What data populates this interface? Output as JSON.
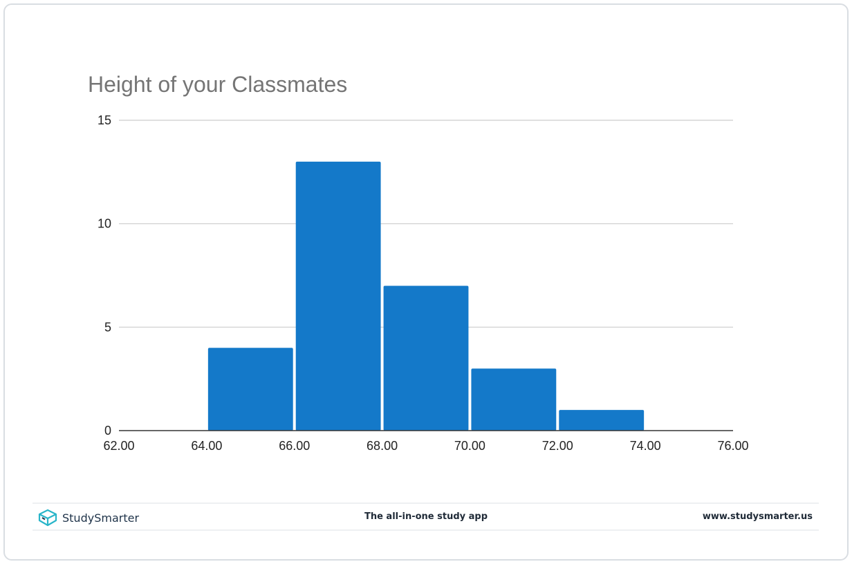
{
  "chart_data": {
    "type": "bar",
    "title": "Height of your Classmates",
    "xlabel": "",
    "ylabel": "",
    "bins": [
      {
        "from": 64,
        "to": 66,
        "value": 4
      },
      {
        "from": 66,
        "to": 68,
        "value": 13
      },
      {
        "from": 68,
        "to": 70,
        "value": 7
      },
      {
        "from": 70,
        "to": 72,
        "value": 3
      },
      {
        "from": 72,
        "to": 74,
        "value": 1
      }
    ],
    "xlim": [
      62,
      76
    ],
    "ylim": [
      0,
      15
    ],
    "x_ticks": [
      "62.00",
      "64.00",
      "66.00",
      "68.00",
      "70.00",
      "72.00",
      "74.00",
      "76.00"
    ],
    "y_ticks": [
      "0",
      "5",
      "10",
      "15"
    ],
    "grid": true,
    "legend": "none",
    "bar_color": "#1479c9"
  },
  "footer": {
    "brand_name": "StudySmarter",
    "brand_icon": "box-logo-icon",
    "tagline": "The all-in-one study app",
    "website": "www.studysmarter.us"
  }
}
